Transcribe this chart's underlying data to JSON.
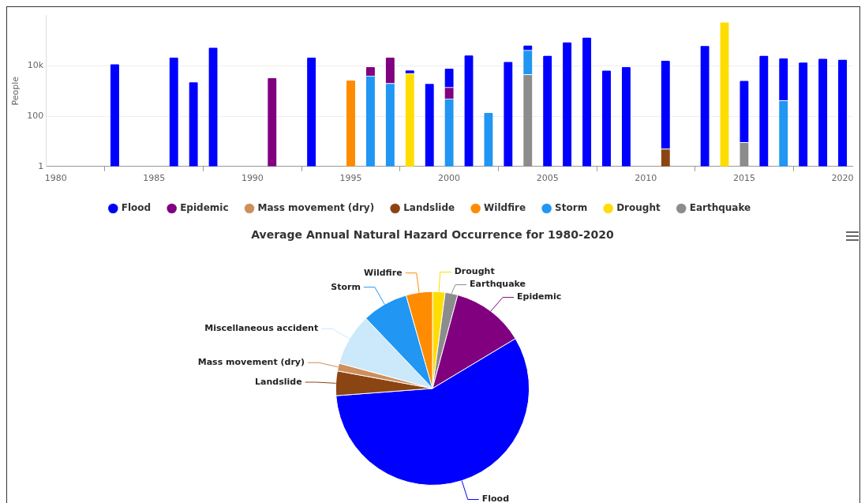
{
  "chart_data": [
    {
      "type": "bar",
      "stacked": true,
      "log": "y",
      "grid": "y",
      "legend": "bottom",
      "ylabel": "People",
      "x": [
        1983,
        1986,
        1987,
        1988,
        1991,
        1993,
        1995,
        1996,
        1997,
        1998,
        1999,
        2000,
        2001,
        2002,
        2003,
        2004,
        2005,
        2006,
        2007,
        2008,
        2009,
        2011,
        2013,
        2014,
        2015,
        2016,
        2017,
        2018,
        2019,
        2020
      ],
      "xlim": [
        1979.5,
        2020.5
      ],
      "xticks": [
        1980,
        1985,
        1990,
        1995,
        2000,
        2005,
        2010,
        2015,
        2020
      ],
      "ylim": [
        1,
        1000000
      ],
      "yticks": [
        1,
        100,
        {
          "value": 10000,
          "label": "10k"
        }
      ],
      "series": [
        {
          "name": "Earthquake",
          "color": "#8c8c8c",
          "values": [
            null,
            null,
            null,
            null,
            null,
            null,
            null,
            null,
            null,
            null,
            null,
            null,
            null,
            null,
            null,
            4500,
            null,
            null,
            null,
            null,
            null,
            null,
            null,
            null,
            9,
            null,
            null,
            null,
            null,
            null
          ]
        },
        {
          "name": "Drought",
          "color": "#ffdd00",
          "values": [
            null,
            null,
            null,
            null,
            null,
            null,
            null,
            null,
            null,
            5000,
            null,
            null,
            null,
            null,
            null,
            null,
            null,
            null,
            null,
            null,
            null,
            null,
            null,
            550000,
            null,
            null,
            null,
            null,
            null,
            null
          ]
        },
        {
          "name": "Storm",
          "color": "#2196f3",
          "values": [
            null,
            null,
            null,
            null,
            null,
            null,
            null,
            4000,
            2000,
            null,
            null,
            490,
            null,
            140,
            null,
            37000,
            null,
            null,
            null,
            null,
            null,
            null,
            null,
            null,
            null,
            null,
            420,
            null,
            null,
            null
          ]
        },
        {
          "name": "Wildfire",
          "color": "#ff8c00",
          "values": [
            null,
            null,
            null,
            null,
            null,
            null,
            2700,
            null,
            null,
            null,
            null,
            null,
            null,
            null,
            null,
            null,
            null,
            null,
            null,
            null,
            null,
            null,
            null,
            null,
            null,
            null,
            null,
            null,
            null,
            null
          ]
        },
        {
          "name": "Landslide",
          "color": "#8b4513",
          "values": [
            null,
            null,
            null,
            null,
            null,
            null,
            null,
            null,
            null,
            null,
            null,
            null,
            null,
            null,
            null,
            null,
            null,
            null,
            null,
            null,
            null,
            5,
            null,
            null,
            null,
            null,
            null,
            null,
            null,
            null
          ]
        },
        {
          "name": "Mass movement (dry)",
          "color": "#cd8f5c",
          "values": [
            null,
            null,
            null,
            null,
            null,
            null,
            null,
            null,
            null,
            null,
            null,
            null,
            null,
            null,
            null,
            null,
            null,
            null,
            null,
            null,
            null,
            null,
            null,
            null,
            null,
            null,
            null,
            null,
            null,
            null
          ]
        },
        {
          "name": "Epidemic",
          "color": "#800080",
          "values": [
            null,
            null,
            null,
            null,
            3400,
            null,
            null,
            5300,
            20000,
            null,
            null,
            900,
            null,
            null,
            null,
            null,
            null,
            null,
            null,
            null,
            null,
            null,
            null,
            null,
            null,
            null,
            null,
            null,
            null,
            null
          ]
        },
        {
          "name": "Flood",
          "color": "#0000ff",
          "values": [
            12000,
            22000,
            2300,
            55000,
            null,
            22000,
            null,
            null,
            null,
            1800,
            2000,
            6700,
            27000,
            null,
            15000,
            25000,
            26000,
            89000,
            137000,
            6700,
            9300,
            16500,
            64000,
            null,
            2600,
            26000,
            20000,
            14000,
            20000,
            18000
          ]
        }
      ]
    },
    {
      "type": "pie",
      "title": "Average Annual Natural Hazard Occurrence for 1980-2020",
      "categories": [
        "Drought",
        "Earthquake",
        "Epidemic",
        "Flood",
        "Landslide",
        "Mass movement (dry)",
        "Miscellaneous accident",
        "Storm",
        "Wildfire"
      ],
      "values": [
        2.1,
        2.1,
        12.2,
        57.4,
        4.1,
        1.3,
        8.7,
        7.7,
        4.4
      ],
      "colors": [
        "#ffdd00",
        "#8c8c8c",
        "#800080",
        "#0000ff",
        "#8b4513",
        "#cd8f5c",
        "#cce8fb",
        "#2196f3",
        "#ff8c00"
      ]
    }
  ]
}
